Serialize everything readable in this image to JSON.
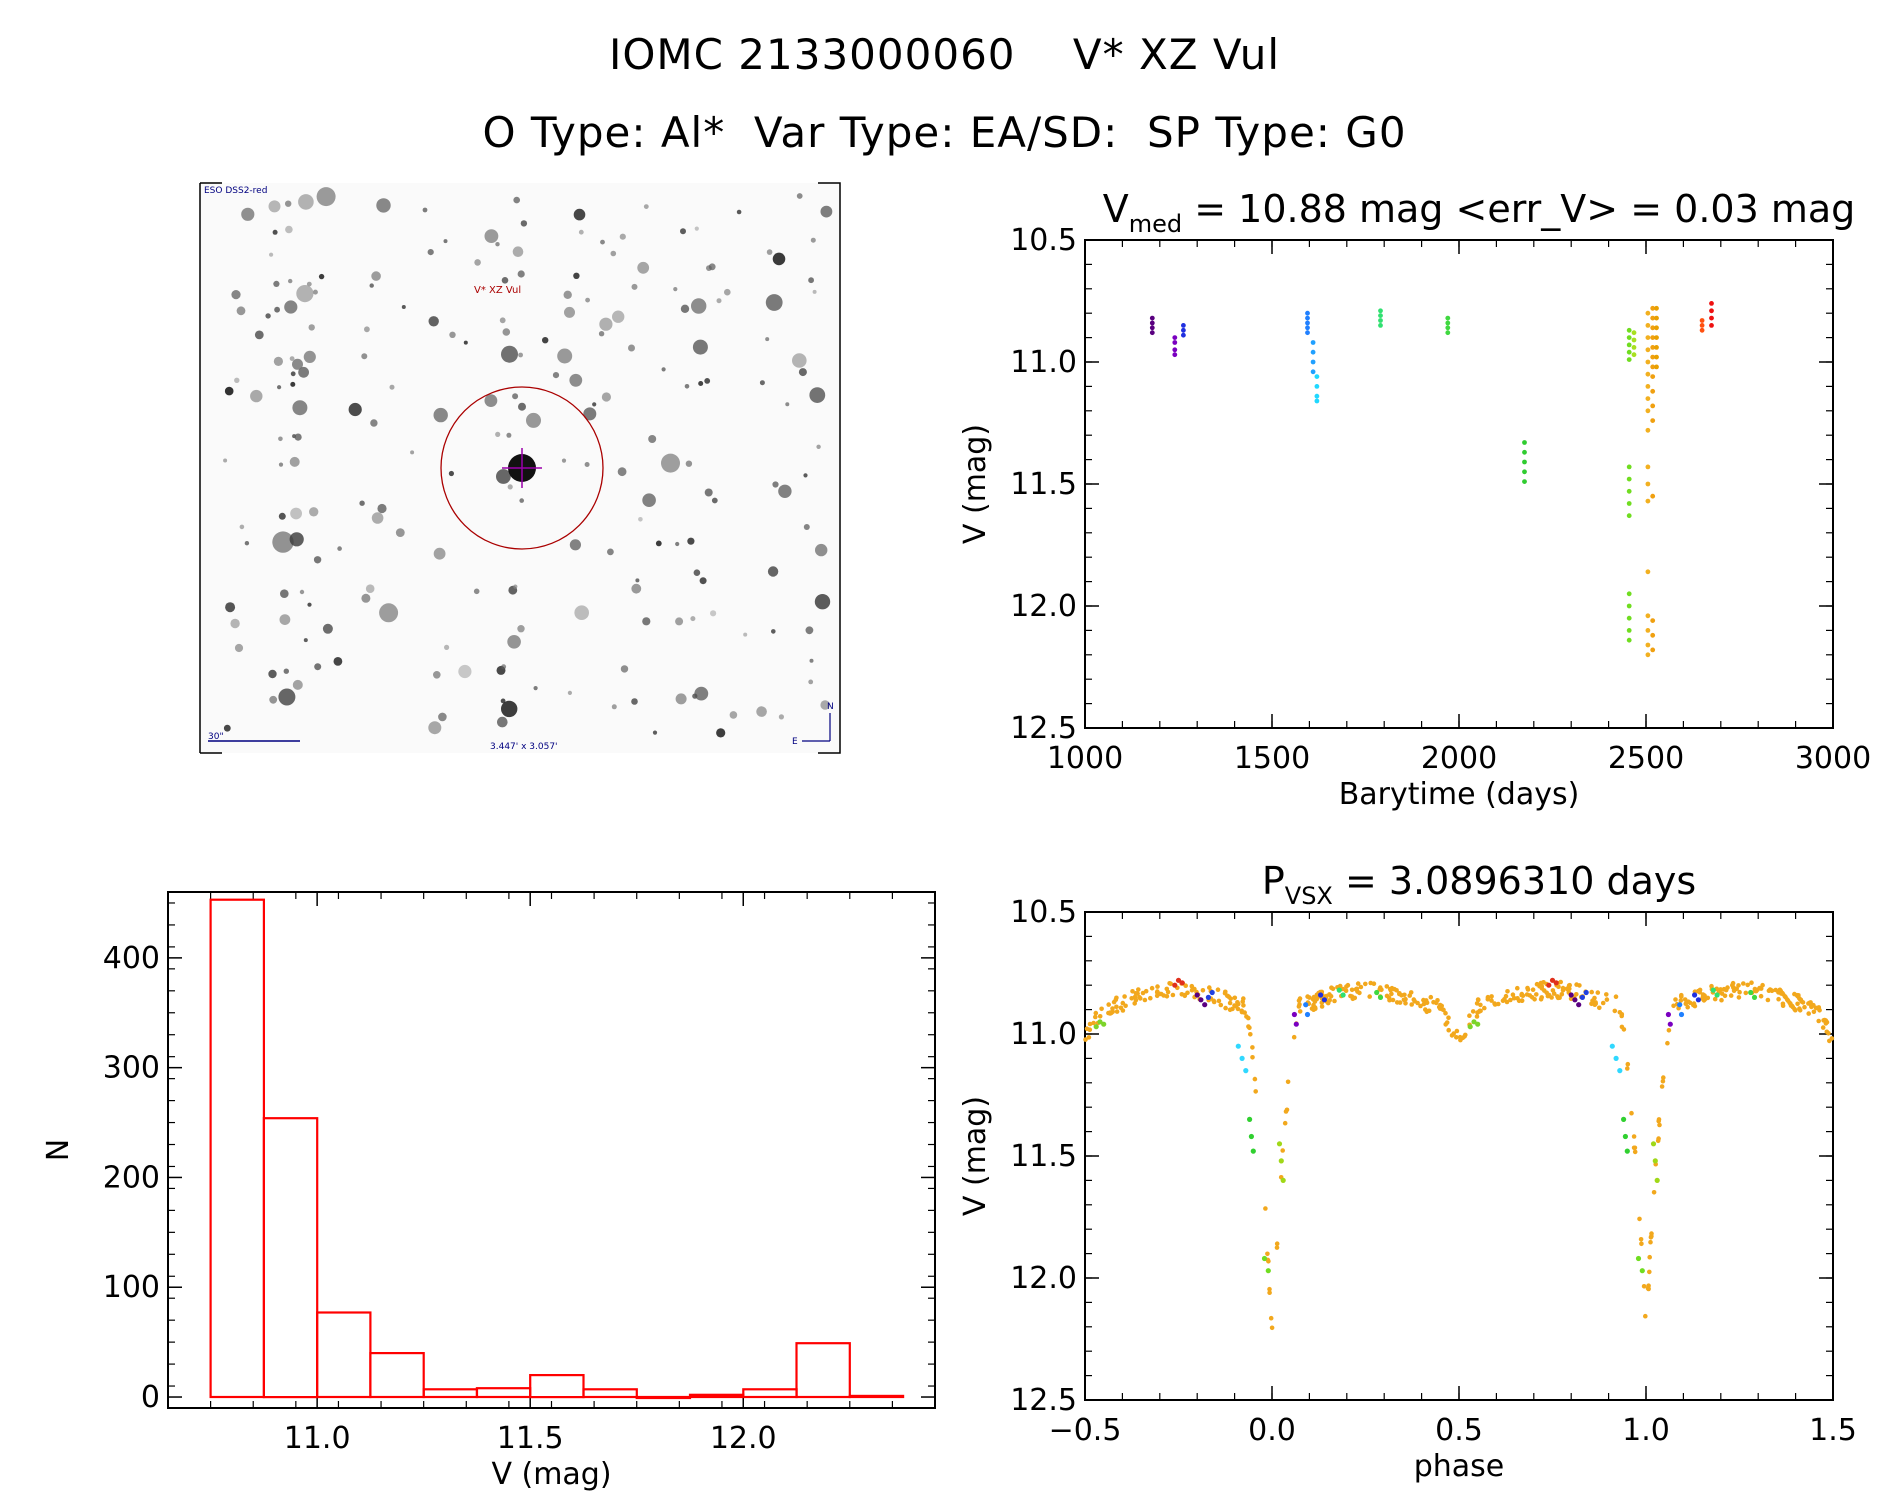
{
  "header": {
    "title": "IOMC 2133000060    V* XZ Vul",
    "subtitle": "O Type: Al*  Var Type: EA/SD:  SP Type: G0"
  },
  "finder": {
    "survey_label": "ESO DSS2-red",
    "target_label": "V* XZ Vul",
    "scale_label": "30\"",
    "fov_label": "3.447' x 3.057'",
    "north_label": "N",
    "east_label": "E",
    "target_color": "#aa0000",
    "crosshair_color": "#9900aa",
    "label_color": "#000080"
  },
  "chart_data": [
    {
      "id": "lightcurve",
      "type": "scatter",
      "title_main": "V",
      "title_sub": "med",
      "title_rest": " = 10.88 mag <err_V> = 0.03 mag",
      "xlabel": "Barytime (days)",
      "ylabel": "V (mag)",
      "xlim": [
        1000,
        3000
      ],
      "ylim": [
        12.5,
        10.5
      ],
      "xticks": [
        1000,
        1500,
        2000,
        2500,
        3000
      ],
      "yticks": [
        10.5,
        11.0,
        11.5,
        12.0,
        12.5
      ],
      "groups": [
        {
          "x": 1180,
          "y": [
            10.82,
            10.84,
            10.86,
            10.88
          ],
          "color": "#5a0080"
        },
        {
          "x": 1240,
          "y": [
            10.9,
            10.92,
            10.95,
            10.97
          ],
          "color": "#7a00c0"
        },
        {
          "x": 1263,
          "y": [
            10.85,
            10.87,
            10.89
          ],
          "color": "#2030e0"
        },
        {
          "x": 1595,
          "y": [
            10.8,
            10.82,
            10.84,
            10.86,
            10.88
          ],
          "color": "#2080ff"
        },
        {
          "x": 1610,
          "y": [
            10.92,
            10.96,
            11.0,
            11.04
          ],
          "color": "#20a0ff"
        },
        {
          "x": 1620,
          "y": [
            11.06,
            11.1,
            11.14,
            11.16
          ],
          "color": "#20d8ff"
        },
        {
          "x": 1790,
          "y": [
            10.79,
            10.81,
            10.83,
            10.85
          ],
          "color": "#30e070"
        },
        {
          "x": 1970,
          "y": [
            10.82,
            10.84,
            10.86,
            10.88
          ],
          "color": "#40d840"
        },
        {
          "x": 2175,
          "y": [
            11.33,
            11.37,
            11.41,
            11.45,
            11.49
          ],
          "color": "#30cc30"
        },
        {
          "x": 2455,
          "y": [
            10.87,
            10.9,
            10.93,
            10.96,
            10.99,
            11.43,
            11.48,
            11.53,
            11.58,
            11.63,
            11.95,
            12.0,
            12.05,
            12.1,
            12.14
          ],
          "color": "#70dd20"
        },
        {
          "x": 2468,
          "y": [
            10.88,
            10.91,
            10.94,
            10.97
          ],
          "color": "#a8e020"
        },
        {
          "x": 2505,
          "y": [
            10.8,
            10.85,
            10.9,
            10.95,
            11.0,
            11.05,
            11.1,
            11.15,
            11.2,
            11.28,
            11.43,
            11.5,
            11.57,
            11.86,
            12.04,
            12.1,
            12.16,
            12.2
          ],
          "color": "#f2b020"
        },
        {
          "x": 2518,
          "y": [
            10.78,
            10.82,
            10.86,
            10.9,
            10.94,
            10.98,
            11.02,
            11.06,
            11.12,
            11.18,
            11.24,
            11.55,
            12.06,
            12.12,
            12.18
          ],
          "color": "#f0a010"
        },
        {
          "x": 2528,
          "y": [
            10.78,
            10.82,
            10.86,
            10.9,
            10.94,
            10.98,
            11.02
          ],
          "color": "#e8a000"
        },
        {
          "x": 2650,
          "y": [
            10.83,
            10.85,
            10.87
          ],
          "color": "#ff5010"
        },
        {
          "x": 2675,
          "y": [
            10.76,
            10.79,
            10.82,
            10.85
          ],
          "color": "#ee1010"
        }
      ]
    },
    {
      "id": "histogram",
      "type": "bar",
      "xlabel": "V (mag)",
      "ylabel": "N",
      "xlim": [
        10.65,
        12.45
      ],
      "ylim": [
        -10,
        460
      ],
      "xticks": [
        11.0,
        11.5,
        12.0
      ],
      "yticks": [
        0,
        100,
        200,
        300,
        400
      ],
      "bin_width": 0.125,
      "bins_start": [
        10.75,
        10.875,
        11.0,
        11.125,
        11.25,
        11.375,
        11.5,
        11.625,
        11.75,
        11.875,
        12.0,
        12.125,
        12.25
      ],
      "values": [
        453,
        254,
        77,
        40,
        7,
        8,
        20,
        7,
        0,
        2,
        7,
        49,
        1
      ],
      "color": "#ff0000"
    },
    {
      "id": "phased",
      "type": "scatter",
      "title_main": "P",
      "title_sub": "VSX",
      "title_rest": " = 3.0896310 days",
      "xlabel": "phase",
      "ylabel": "V (mag)",
      "xlim": [
        -0.5,
        1.5
      ],
      "ylim": [
        12.5,
        10.5
      ],
      "xticks": [
        -0.5,
        0.0,
        0.5,
        1.0,
        1.5
      ],
      "yticks": [
        10.5,
        11.0,
        11.5,
        12.0,
        12.5
      ],
      "curve_color": "#f2a81d",
      "groups": [
        {
          "x": [
            -0.47,
            -0.46,
            -0.45
          ],
          "y": [
            10.97,
            10.95,
            10.96
          ],
          "color": "#7cd42a"
        },
        {
          "x": [
            -0.26,
            -0.25,
            -0.24
          ],
          "y": [
            10.8,
            10.78,
            10.79
          ],
          "color": "#e0301c"
        },
        {
          "x": [
            -0.2,
            -0.19,
            -0.18
          ],
          "y": [
            10.84,
            10.86,
            10.88
          ],
          "color": "#5a0080"
        },
        {
          "x": [
            -0.17,
            -0.16
          ],
          "y": [
            10.85,
            10.83
          ],
          "color": "#2040e0"
        },
        {
          "x": [
            -0.09,
            -0.08,
            -0.07
          ],
          "y": [
            11.05,
            11.1,
            11.15
          ],
          "color": "#30d8ff"
        },
        {
          "x": [
            -0.06,
            -0.055,
            -0.05
          ],
          "y": [
            11.35,
            11.42,
            11.48
          ],
          "color": "#30d030"
        },
        {
          "x": [
            0.02,
            0.025,
            0.03
          ],
          "y": [
            11.45,
            11.52,
            11.6
          ],
          "color": "#a0d818"
        },
        {
          "x": [
            -0.02,
            -0.01
          ],
          "y": [
            11.92,
            11.97
          ],
          "color": "#70dd20"
        },
        {
          "x": [
            0.06,
            0.065
          ],
          "y": [
            10.92,
            10.96
          ],
          "color": "#7a00c0"
        },
        {
          "x": [
            0.09,
            0.095
          ],
          "y": [
            10.88,
            10.92
          ],
          "color": "#2080ff"
        },
        {
          "x": [
            0.13,
            0.14
          ],
          "y": [
            10.84,
            10.86
          ],
          "color": "#2030e0"
        },
        {
          "x": [
            0.18,
            0.19
          ],
          "y": [
            10.82,
            10.84
          ],
          "color": "#30e070"
        },
        {
          "x": [
            0.28,
            0.29
          ],
          "y": [
            10.83,
            10.85
          ],
          "color": "#40d840"
        }
      ]
    }
  ]
}
